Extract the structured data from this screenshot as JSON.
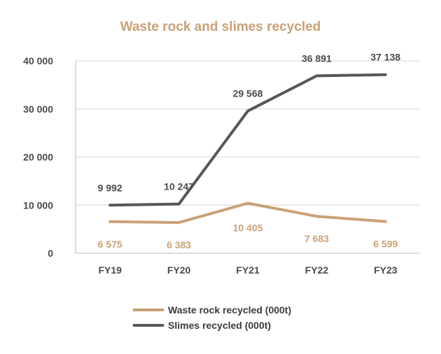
{
  "colors": {
    "waste": "#c9a176",
    "slimes": "#575757",
    "axis_text": "#4a4a4a",
    "grid": "#e2e2e2"
  },
  "chart_data": {
    "type": "line",
    "title": "Waste rock and slimes recycled",
    "categories": [
      "FY19",
      "FY20",
      "FY21",
      "FY22",
      "FY23"
    ],
    "ylim": [
      0,
      40000
    ],
    "yticks": [
      0,
      10000,
      20000,
      30000,
      40000
    ],
    "ytick_labels": [
      "0",
      "10 000",
      "20 000",
      "30 000",
      "40 000"
    ],
    "grid": true,
    "legend_position": "bottom",
    "series": [
      {
        "name": "Waste rock recycled (000t)",
        "values": [
          6575,
          6383,
          10405,
          7683,
          6599
        ],
        "labels": [
          "6 575",
          "6 383",
          "10 405",
          "7 683",
          "6 599"
        ],
        "color": "#c9a176"
      },
      {
        "name": "Slimes recycled (000t)",
        "values": [
          9992,
          10247,
          29568,
          36891,
          37138
        ],
        "labels": [
          "9 992",
          "10 247",
          "29 568",
          "36 891",
          "37 138"
        ],
        "color": "#575757"
      }
    ]
  }
}
